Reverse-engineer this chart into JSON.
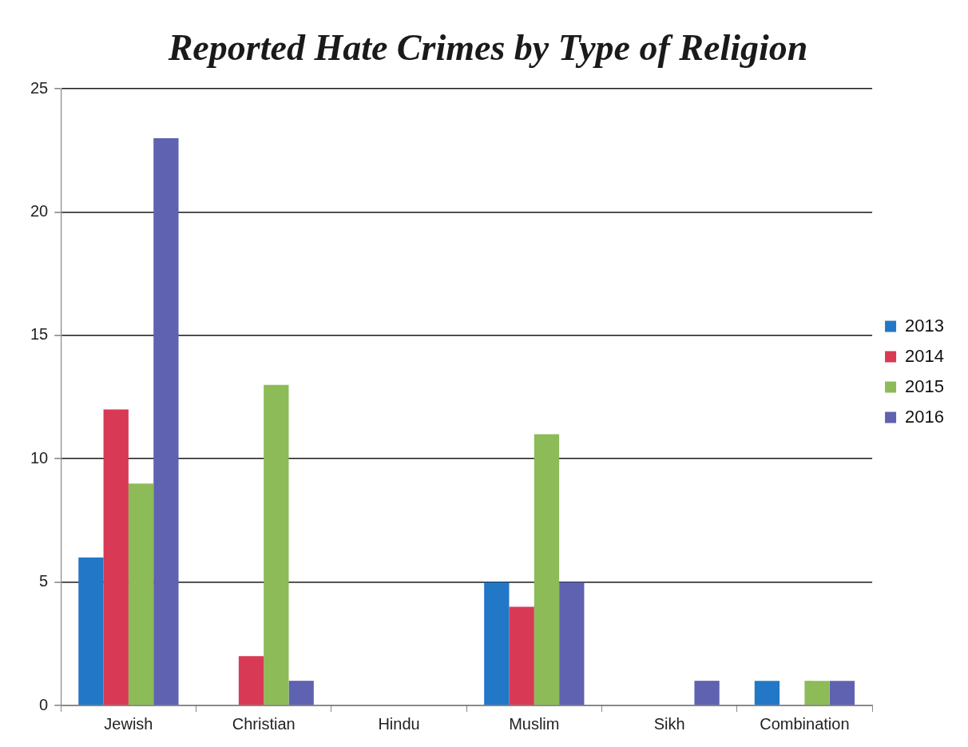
{
  "chart_data": {
    "type": "bar",
    "title": "Reported Hate Crimes by Type of Religion",
    "categories": [
      "Jewish",
      "Christian",
      "Hindu",
      "Muslim",
      "Sikh",
      "Combination"
    ],
    "series": [
      {
        "name": "2013",
        "color": "#2277c6",
        "values": [
          6,
          0,
          0,
          5,
          0,
          1
        ]
      },
      {
        "name": "2014",
        "color": "#d83a56",
        "values": [
          12,
          2,
          0,
          4,
          0,
          0
        ]
      },
      {
        "name": "2015",
        "color": "#8cbb58",
        "values": [
          9,
          13,
          0,
          11,
          0,
          1
        ]
      },
      {
        "name": "2016",
        "color": "#5f62b0",
        "values": [
          23,
          1,
          0,
          5,
          1,
          1
        ]
      }
    ],
    "ylim": [
      0,
      25
    ],
    "yticks": [
      0,
      5,
      10,
      15,
      20,
      25
    ],
    "grid": "y",
    "legend": "right"
  }
}
